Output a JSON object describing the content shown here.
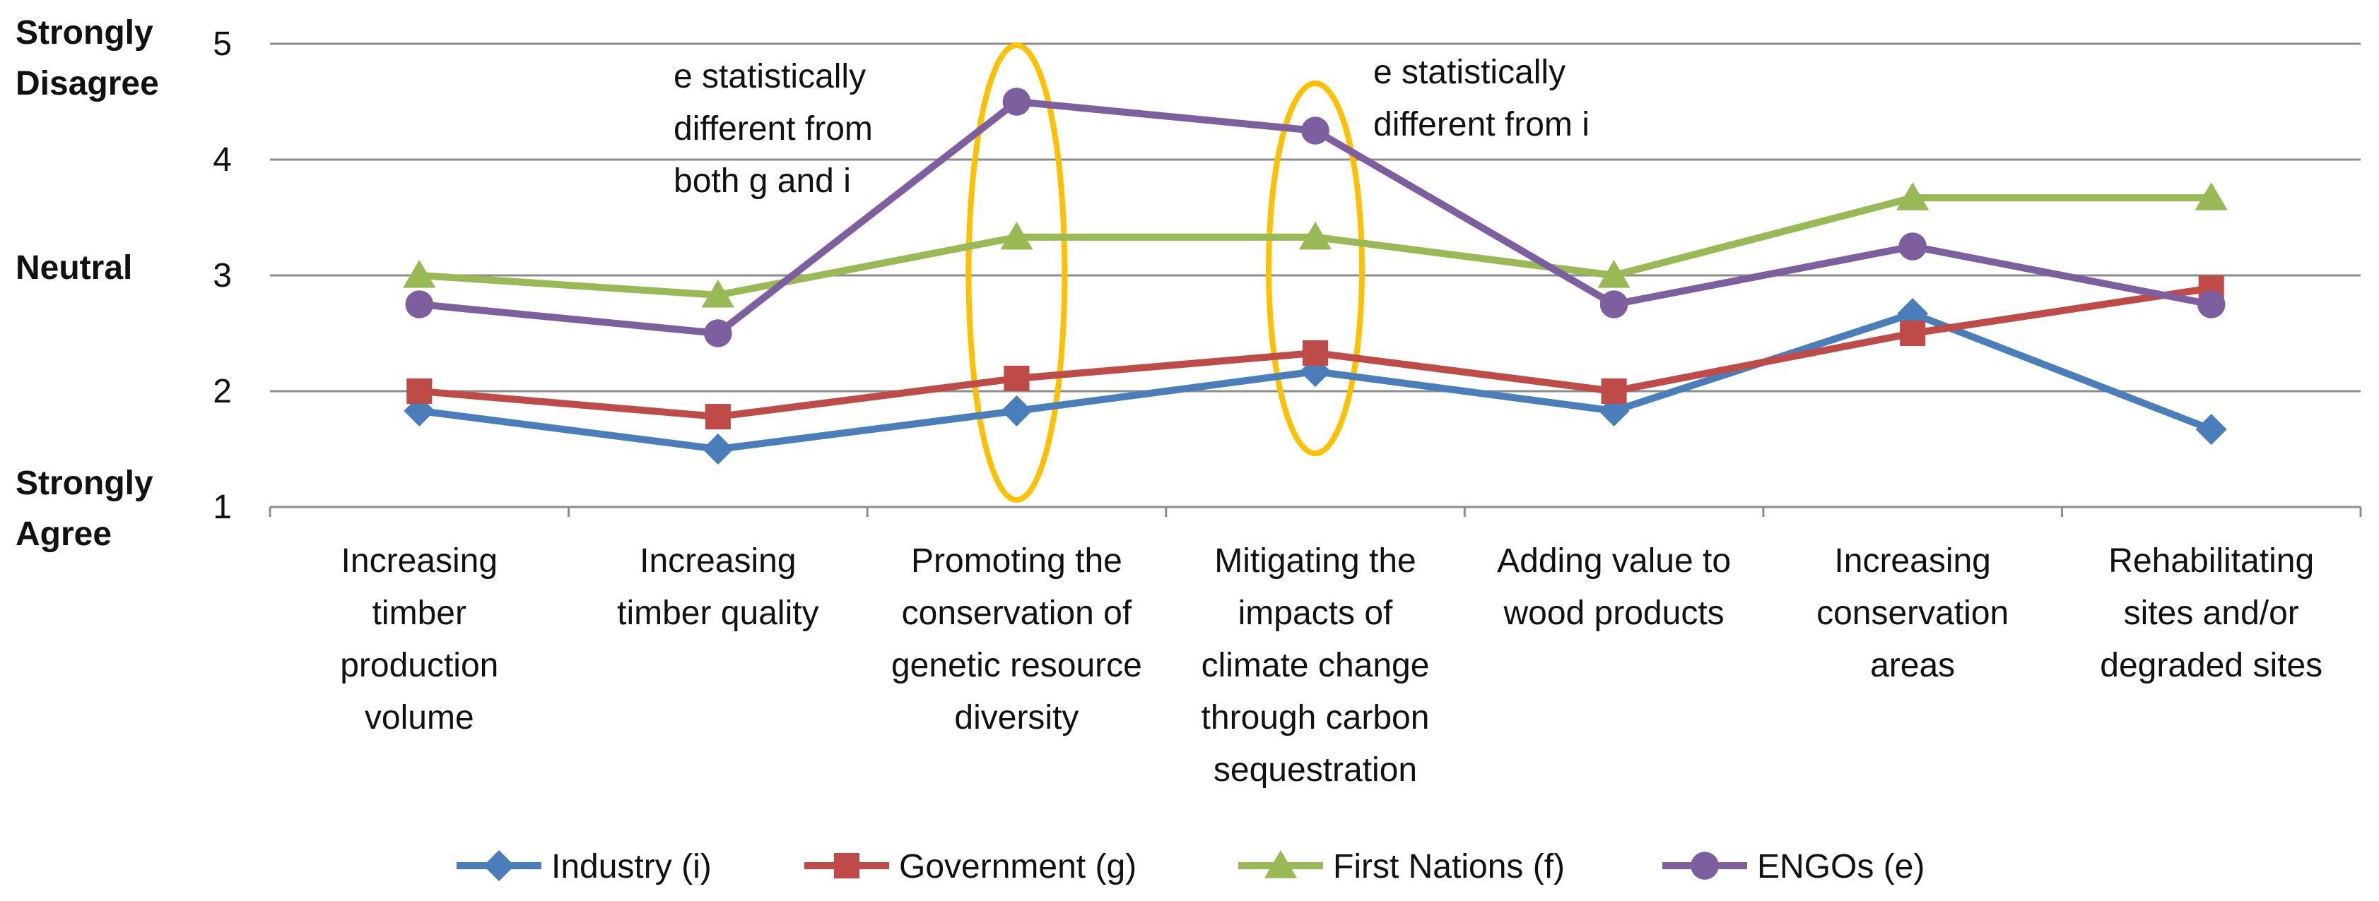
{
  "chart_data": {
    "type": "line",
    "title": "",
    "xlabel": "",
    "ylabel": "",
    "ylim": [
      1,
      5
    ],
    "yticks": [
      1,
      2,
      3,
      4,
      5
    ],
    "grid": "horizontal",
    "legend_position": "bottom",
    "scale_labels": [
      {
        "lines": [
          "Strongly",
          "Disagree"
        ],
        "value": 5
      },
      {
        "lines": [
          "Neutral"
        ],
        "value": 3
      },
      {
        "lines": [
          "Strongly",
          "Agree"
        ],
        "value": 1
      }
    ],
    "categories": [
      [
        "Increasing",
        "timber",
        "production",
        "volume"
      ],
      [
        "Increasing",
        "timber quality"
      ],
      [
        "Promoting the",
        "conservation of",
        "genetic resource",
        "diversity"
      ],
      [
        "Mitigating the",
        "impacts of",
        "climate change",
        "through carbon",
        "sequestration"
      ],
      [
        "Adding value to",
        "wood products"
      ],
      [
        "Increasing",
        "conservation",
        "areas"
      ],
      [
        "Rehabilitating",
        "sites and/or",
        "degraded sites"
      ]
    ],
    "series": [
      {
        "name": "Industry (i)",
        "color": "#4a7ebb",
        "marker": "diamond",
        "values": [
          1.83,
          1.5,
          1.83,
          2.17,
          1.83,
          2.67,
          1.67
        ]
      },
      {
        "name": "Government (g)",
        "color": "#be4b48",
        "marker": "square",
        "values": [
          2.0,
          1.78,
          2.11,
          2.33,
          2.0,
          2.5,
          2.89
        ]
      },
      {
        "name": "First Nations (f)",
        "color": "#98b954",
        "marker": "triangle",
        "values": [
          3.0,
          2.83,
          3.33,
          3.33,
          3.0,
          3.67,
          3.67
        ]
      },
      {
        "name": "ENGOs (e)",
        "color": "#7d5fa0",
        "marker": "circle",
        "values": [
          2.75,
          2.5,
          4.5,
          4.25,
          2.75,
          3.25,
          2.75
        ]
      }
    ],
    "highlights": [
      {
        "category_index": 2,
        "color": "#ffc000"
      },
      {
        "category_index": 3,
        "color": "#ffc000"
      }
    ],
    "annotations": [
      {
        "lines": [
          "e statistically",
          "different from",
          "both g and i"
        ],
        "category_index": 2
      },
      {
        "lines": [
          "e statistically",
          "different from i"
        ],
        "category_index": 3
      }
    ]
  }
}
